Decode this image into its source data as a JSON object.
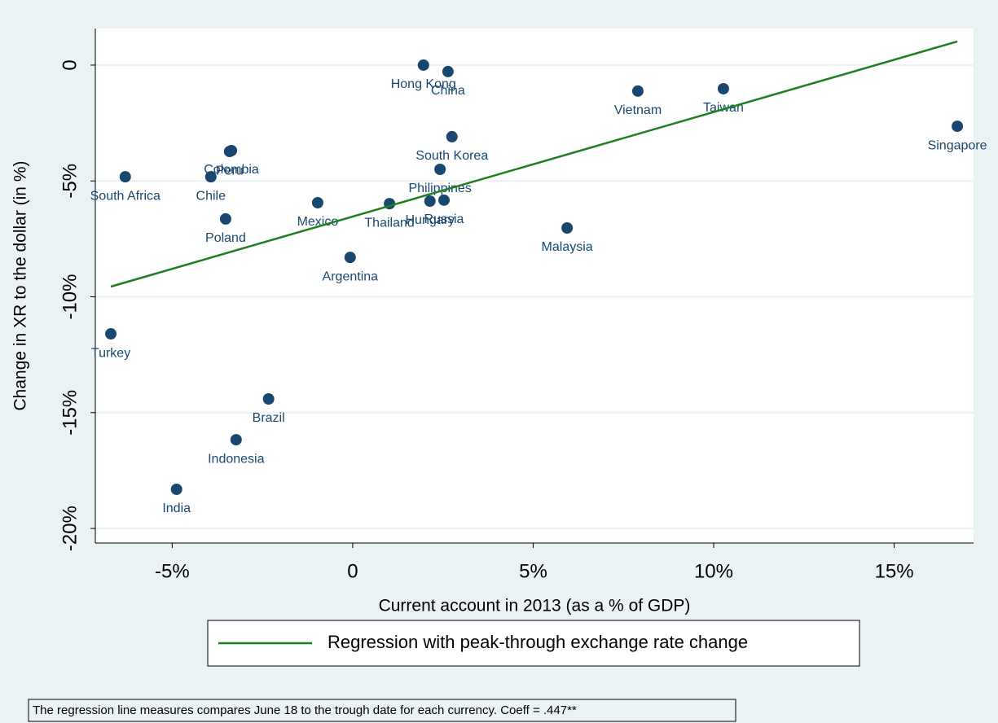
{
  "chart_data": {
    "type": "scatter",
    "xlabel": "Current account in 2013 (as a % of GDP)",
    "ylabel": "Change in XR to the dollar (in %)",
    "xlim": [
      -7.13,
      17.2
    ],
    "ylim": [
      -20.63,
      1.58
    ],
    "xticks": [
      {
        "value": -5,
        "label": "-5%"
      },
      0,
      {
        "value": 5,
        "label": "5%"
      },
      {
        "value": 10,
        "label": "10%"
      },
      {
        "value": 15,
        "label": "15%"
      }
    ],
    "yticks": [
      0,
      {
        "value": -5,
        "label": "-5%"
      },
      {
        "value": -10,
        "label": "-10%"
      },
      {
        "value": -15,
        "label": "-15%"
      },
      {
        "value": -20,
        "label": "-20%"
      }
    ],
    "grid": true,
    "points": {
      "color": "#1a476f",
      "labels": [
        "Hong Kong",
        "China",
        "Vietnam",
        "Taiwan",
        "Singapore",
        "South Korea",
        "Colombia",
        "Peru",
        "South Africa",
        "Chile",
        "Philippines",
        "Mexico",
        "Thailand",
        "Hungary",
        "Russia",
        "Poland",
        "Malaysia",
        "Argentina",
        "Turkey",
        "Brazil",
        "Indonesia",
        "India"
      ],
      "x": [
        1.96,
        2.64,
        7.9,
        10.27,
        16.75,
        2.75,
        -3.36,
        -3.41,
        -6.3,
        -3.93,
        2.42,
        -0.97,
        1.02,
        2.14,
        2.53,
        -3.52,
        5.94,
        -0.07,
        -6.7,
        -2.33,
        -3.23,
        -4.88
      ],
      "values": [
        0,
        -0.28,
        -1.12,
        -1.02,
        -2.64,
        -3.09,
        -3.69,
        -3.73,
        -4.82,
        -4.82,
        -4.5,
        -5.94,
        -5.98,
        -5.87,
        -5.83,
        -6.64,
        -7.03,
        -8.3,
        -11.6,
        -14.41,
        -16.17,
        -18.31
      ]
    },
    "series": [
      {
        "name": "Regression with peak-through exchange rate change",
        "color": "#1f7f1f",
        "x": [
          -6.7,
          16.75
        ],
        "values": [
          -9.56,
          1.02
        ]
      }
    ],
    "note": "The regression line measures compares June 18 to the trough date for each currency. Coeff = .447**"
  }
}
